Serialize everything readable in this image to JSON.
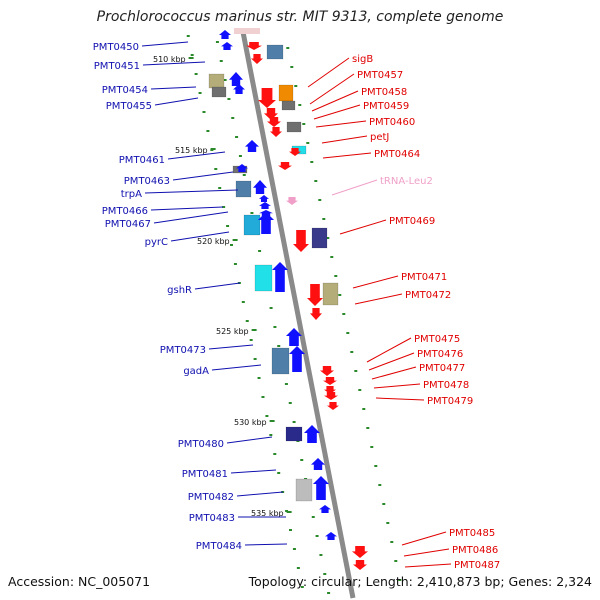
{
  "title": "Prochlorococcus marinus str. MIT 9313, complete genome",
  "accession_label": "Accession: NC_005071",
  "summary_label": "Topology: circular; Length: 2,410,873 bp; Genes: 2,324",
  "colors": {
    "left_label": "#1010b0",
    "right_label": "#e00000",
    "trna_label": "#f0a0c8",
    "backbone": "#8a8a8a",
    "tick": "#2a8a2a"
  },
  "ruler": [
    "510 kbp",
    "515 kbp",
    "520 kbp",
    "525 kbp",
    "530 kbp",
    "535 kbp"
  ],
  "left_genes": [
    "PMT0450",
    "PMT0451",
    "PMT0454",
    "PMT0455",
    "PMT0461",
    "PMT0463",
    "trpA",
    "PMT0466",
    "PMT0467",
    "pyrC",
    "gshR",
    "PMT0473",
    "gadA",
    "PMT0480",
    "PMT0481",
    "PMT0482",
    "PMT0483",
    "PMT0484"
  ],
  "right_genes": [
    "sigB",
    "PMT0457",
    "PMT0458",
    "PMT0459",
    "PMT0460",
    "petJ",
    "PMT0464",
    "tRNA-Leu2",
    "PMT0469",
    "PMT0471",
    "PMT0472",
    "PMT0475",
    "PMT0476",
    "PMT0477",
    "PMT0478",
    "PMT0479",
    "PMT0485",
    "PMT0486",
    "PMT0487"
  ]
}
